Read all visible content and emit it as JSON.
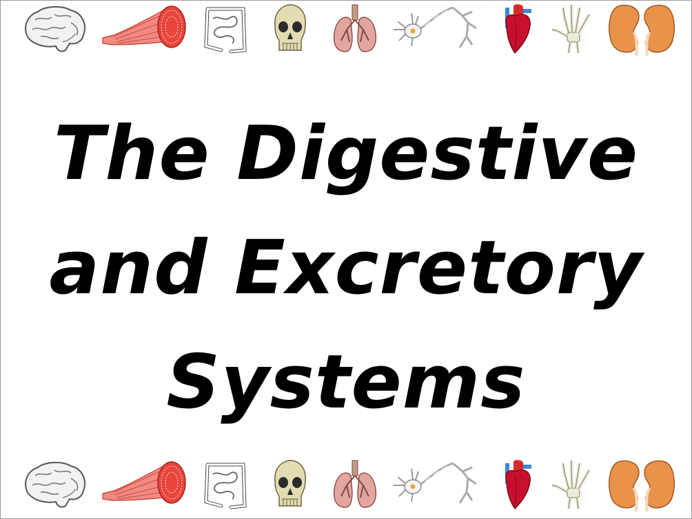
{
  "slide": {
    "title_lines": [
      "The Digestive",
      "and Excretory",
      "Systems"
    ]
  },
  "organ_icons": [
    "brain-icon",
    "muscle-icon",
    "intestine-icon",
    "skull-icon",
    "lungs-icon",
    "neuron-icon",
    "heart-icon",
    "hand-bones-icon",
    "kidneys-icon"
  ],
  "colors": {
    "muscle": "#e8453c",
    "skull": "#d8cfa0",
    "lungs": "#e3a5a0",
    "heart": "#c8102e",
    "vessel_blue": "#3b8ad9",
    "kidney": "#e8924a",
    "outline": "#555555"
  }
}
